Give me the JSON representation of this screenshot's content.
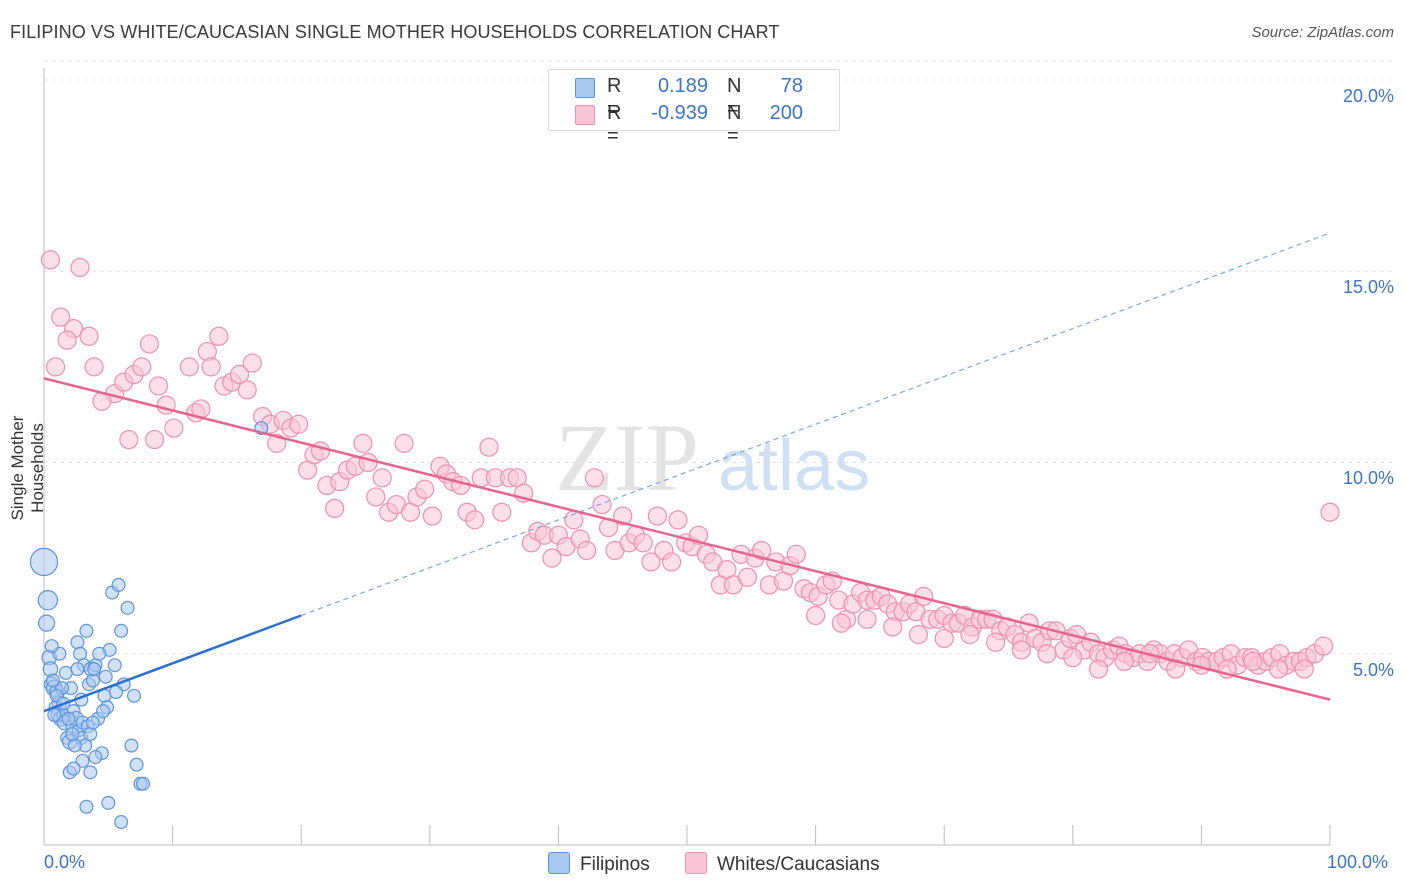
{
  "title": "FILIPINO VS WHITE/CAUCASIAN SINGLE MOTHER HOUSEHOLDS CORRELATION CHART",
  "source": "Source: ZipAtlas.com",
  "watermark": {
    "zip": "ZIP",
    "atlas": "atlas"
  },
  "legend": {
    "r_label": "R =",
    "n_label": "N =",
    "filipinos": {
      "r": "0.189",
      "n": "78",
      "color": "#a9c8f0"
    },
    "whites": {
      "r": "-0.939",
      "n": "200",
      "color": "#f6b7cc"
    }
  },
  "chart_data": {
    "type": "scatter",
    "xlabel": "",
    "ylabel": "Single Mother Households",
    "xlim": [
      0,
      100
    ],
    "ylim": [
      0,
      20
    ],
    "x_tick_labels": {
      "min": "0.0%",
      "max": "100.0%"
    },
    "y_tick_labels": [
      "5.0%",
      "10.0%",
      "15.0%",
      "20.0%"
    ],
    "y_ticks": [
      5,
      10,
      15,
      20
    ],
    "grid": true,
    "legend_position": "top-center",
    "series": [
      {
        "name": "Filipinos",
        "color": "#5b93d9",
        "fill": "#a9c8f0",
        "trend": {
          "x0": 0,
          "y0": 3.5,
          "x1": 20,
          "y1": 6.0,
          "dashed_to_x": 100,
          "dashed_to_y": 16.0,
          "line_color": "#2d6fce"
        },
        "points": [
          [
            0.0,
            7.4,
            1.7
          ],
          [
            0.3,
            6.4,
            1.2
          ],
          [
            0.2,
            5.8,
            1.0
          ],
          [
            0.4,
            4.9,
            0.9
          ],
          [
            0.5,
            4.6,
            0.9
          ],
          [
            0.6,
            4.2,
            0.9
          ],
          [
            0.8,
            4.1,
            1.0
          ],
          [
            1.0,
            4.0,
            0.9
          ],
          [
            1.2,
            3.7,
            0.9
          ],
          [
            0.9,
            3.6,
            0.8
          ],
          [
            1.1,
            3.4,
            0.9
          ],
          [
            1.3,
            3.3,
            0.9
          ],
          [
            1.5,
            3.4,
            0.8
          ],
          [
            1.6,
            3.2,
            0.9
          ],
          [
            1.8,
            2.8,
            0.8
          ],
          [
            2.0,
            2.7,
            0.9
          ],
          [
            2.2,
            3.1,
            0.8
          ],
          [
            2.3,
            3.5,
            0.8
          ],
          [
            2.5,
            3.3,
            0.9
          ],
          [
            2.7,
            3.0,
            0.8
          ],
          [
            2.9,
            2.8,
            0.8
          ],
          [
            3.0,
            3.2,
            0.8
          ],
          [
            3.2,
            2.6,
            0.8
          ],
          [
            3.4,
            3.1,
            0.8
          ],
          [
            3.6,
            2.9,
            0.8
          ],
          [
            1.7,
            4.5,
            0.8
          ],
          [
            2.1,
            4.1,
            0.8
          ],
          [
            2.6,
            5.3,
            0.8
          ],
          [
            2.8,
            5.0,
            0.8
          ],
          [
            3.1,
            4.7,
            0.8
          ],
          [
            3.3,
            5.6,
            0.8
          ],
          [
            3.5,
            4.2,
            0.8
          ],
          [
            3.7,
            4.6,
            0.9
          ],
          [
            3.8,
            4.3,
            0.8
          ],
          [
            4.0,
            4.7,
            0.8
          ],
          [
            4.2,
            3.3,
            0.8
          ],
          [
            4.5,
            2.4,
            0.8
          ],
          [
            4.7,
            3.9,
            0.8
          ],
          [
            4.9,
            3.6,
            0.8
          ],
          [
            5.1,
            5.1,
            0.8
          ],
          [
            5.3,
            6.6,
            0.8
          ],
          [
            5.5,
            4.7,
            0.8
          ],
          [
            5.8,
            6.8,
            0.8
          ],
          [
            6.0,
            5.6,
            0.8
          ],
          [
            6.2,
            4.2,
            0.8
          ],
          [
            6.5,
            6.2,
            0.8
          ],
          [
            6.8,
            2.6,
            0.8
          ],
          [
            7.0,
            3.9,
            0.8
          ],
          [
            7.2,
            2.1,
            0.8
          ],
          [
            7.5,
            1.6,
            0.8
          ],
          [
            2.0,
            1.9,
            0.8
          ],
          [
            3.3,
            1.0,
            0.8
          ],
          [
            5.0,
            1.1,
            0.8
          ],
          [
            7.7,
            1.6,
            0.8
          ],
          [
            6.0,
            0.6,
            0.8
          ],
          [
            3.6,
            1.9,
            0.8
          ],
          [
            4.0,
            2.3,
            0.8
          ],
          [
            2.4,
            2.6,
            0.8
          ],
          [
            1.9,
            3.3,
            0.8
          ],
          [
            1.4,
            4.1,
            0.8
          ],
          [
            0.8,
            3.4,
            0.8
          ],
          [
            2.6,
            4.6,
            0.8
          ],
          [
            3.9,
            4.6,
            0.8
          ],
          [
            4.3,
            5.0,
            0.8
          ],
          [
            1.2,
            5.0,
            0.8
          ],
          [
            0.6,
            5.2,
            0.8
          ],
          [
            1.0,
            3.9,
            0.8
          ],
          [
            2.2,
            2.9,
            0.8
          ],
          [
            3.0,
            2.2,
            0.8
          ],
          [
            4.6,
            3.5,
            0.8
          ],
          [
            5.6,
            4.0,
            0.8
          ],
          [
            0.7,
            4.3,
            0.8
          ],
          [
            1.5,
            3.7,
            0.8
          ],
          [
            2.9,
            3.8,
            0.8
          ],
          [
            16.9,
            10.9,
            0.8
          ],
          [
            3.8,
            3.2,
            0.8
          ],
          [
            4.8,
            4.4,
            0.8
          ],
          [
            2.3,
            2.0,
            0.8
          ]
        ]
      },
      {
        "name": "Whites/Caucasians",
        "color": "#ef8fb0",
        "fill": "#f9c5d6",
        "trend": {
          "x0": 0,
          "y0": 12.2,
          "x1": 100,
          "y1": 3.8,
          "line_color": "#e8648e"
        },
        "points": [
          [
            0.5,
            15.3
          ],
          [
            2.8,
            15.1
          ],
          [
            1.3,
            13.8
          ],
          [
            2.3,
            13.5
          ],
          [
            3.5,
            13.3
          ],
          [
            1.8,
            13.2
          ],
          [
            0.9,
            12.5
          ],
          [
            3.9,
            12.5
          ],
          [
            5.5,
            11.8
          ],
          [
            6.2,
            12.1
          ],
          [
            4.5,
            11.6
          ],
          [
            7.0,
            12.3
          ],
          [
            8.2,
            13.1
          ],
          [
            7.6,
            12.5
          ],
          [
            8.9,
            12.0
          ],
          [
            9.5,
            11.5
          ],
          [
            10.1,
            10.9
          ],
          [
            8.6,
            10.6
          ],
          [
            6.6,
            10.6
          ],
          [
            11.3,
            12.5
          ],
          [
            11.8,
            11.3
          ],
          [
            12.2,
            11.4
          ],
          [
            12.7,
            12.9
          ],
          [
            13.0,
            12.5
          ],
          [
            13.6,
            13.3
          ],
          [
            14.0,
            12.0
          ],
          [
            14.6,
            12.1
          ],
          [
            15.2,
            12.3
          ],
          [
            15.8,
            11.9
          ],
          [
            16.2,
            12.6
          ],
          [
            17.0,
            11.2
          ],
          [
            17.6,
            11.0
          ],
          [
            18.1,
            10.5
          ],
          [
            18.6,
            11.1
          ],
          [
            19.2,
            10.9
          ],
          [
            19.8,
            11.0
          ],
          [
            20.5,
            9.8
          ],
          [
            21.0,
            10.2
          ],
          [
            21.5,
            10.3
          ],
          [
            22.0,
            9.4
          ],
          [
            22.6,
            8.8
          ],
          [
            23.0,
            9.5
          ],
          [
            23.6,
            9.8
          ],
          [
            24.2,
            9.9
          ],
          [
            24.8,
            10.5
          ],
          [
            25.2,
            10.0
          ],
          [
            25.8,
            9.1
          ],
          [
            26.3,
            9.6
          ],
          [
            26.8,
            8.7
          ],
          [
            27.4,
            8.9
          ],
          [
            28.0,
            10.5
          ],
          [
            28.5,
            8.7
          ],
          [
            29.0,
            9.1
          ],
          [
            29.6,
            9.3
          ],
          [
            30.2,
            8.6
          ],
          [
            30.8,
            9.9
          ],
          [
            31.3,
            9.7
          ],
          [
            31.8,
            9.5
          ],
          [
            32.4,
            9.4
          ],
          [
            32.9,
            8.7
          ],
          [
            33.5,
            8.5
          ],
          [
            34.0,
            9.6
          ],
          [
            34.6,
            10.4
          ],
          [
            35.1,
            9.6
          ],
          [
            35.6,
            8.7
          ],
          [
            36.2,
            9.6
          ],
          [
            36.8,
            9.6
          ],
          [
            37.3,
            9.2
          ],
          [
            37.9,
            7.9
          ],
          [
            38.4,
            8.2
          ],
          [
            38.9,
            8.1
          ],
          [
            39.5,
            7.5
          ],
          [
            40.0,
            8.1
          ],
          [
            40.6,
            7.8
          ],
          [
            41.2,
            8.5
          ],
          [
            41.7,
            8.0
          ],
          [
            42.2,
            7.7
          ],
          [
            42.8,
            9.6
          ],
          [
            43.4,
            8.9
          ],
          [
            43.9,
            8.3
          ],
          [
            44.4,
            7.7
          ],
          [
            45.0,
            8.6
          ],
          [
            45.5,
            7.9
          ],
          [
            46.0,
            8.1
          ],
          [
            46.6,
            7.9
          ],
          [
            47.2,
            7.4
          ],
          [
            47.7,
            8.6
          ],
          [
            48.2,
            7.7
          ],
          [
            48.8,
            7.4
          ],
          [
            49.3,
            8.5
          ],
          [
            49.9,
            7.9
          ],
          [
            50.4,
            7.8
          ],
          [
            50.9,
            8.1
          ],
          [
            51.5,
            7.6
          ],
          [
            52.0,
            7.4
          ],
          [
            52.6,
            6.8
          ],
          [
            53.1,
            7.2
          ],
          [
            53.6,
            6.8
          ],
          [
            54.2,
            7.6
          ],
          [
            54.7,
            7.0
          ],
          [
            55.3,
            7.5
          ],
          [
            55.8,
            7.7
          ],
          [
            56.4,
            6.8
          ],
          [
            56.9,
            7.4
          ],
          [
            57.5,
            6.9
          ],
          [
            58.0,
            7.3
          ],
          [
            58.5,
            7.6
          ],
          [
            59.1,
            6.7
          ],
          [
            59.6,
            6.6
          ],
          [
            60.2,
            6.5
          ],
          [
            60.8,
            6.8
          ],
          [
            61.3,
            6.9
          ],
          [
            61.8,
            6.4
          ],
          [
            62.4,
            5.9
          ],
          [
            62.9,
            6.3
          ],
          [
            63.5,
            6.6
          ],
          [
            64.0,
            6.4
          ],
          [
            64.6,
            6.4
          ],
          [
            65.1,
            6.5
          ],
          [
            65.6,
            6.3
          ],
          [
            66.2,
            6.1
          ],
          [
            66.8,
            6.1
          ],
          [
            67.3,
            6.3
          ],
          [
            67.8,
            6.1
          ],
          [
            68.4,
            6.5
          ],
          [
            68.9,
            5.9
          ],
          [
            69.5,
            5.9
          ],
          [
            70.0,
            6.0
          ],
          [
            70.6,
            5.8
          ],
          [
            71.1,
            5.8
          ],
          [
            71.6,
            6.0
          ],
          [
            72.2,
            5.7
          ],
          [
            72.8,
            5.9
          ],
          [
            73.3,
            5.9
          ],
          [
            73.8,
            5.9
          ],
          [
            74.4,
            5.6
          ],
          [
            74.9,
            5.7
          ],
          [
            75.5,
            5.5
          ],
          [
            76.0,
            5.3
          ],
          [
            76.6,
            5.8
          ],
          [
            77.1,
            5.4
          ],
          [
            77.6,
            5.3
          ],
          [
            78.2,
            5.6
          ],
          [
            78.7,
            5.6
          ],
          [
            79.3,
            5.1
          ],
          [
            79.8,
            5.4
          ],
          [
            80.3,
            5.5
          ],
          [
            80.9,
            5.1
          ],
          [
            81.4,
            5.3
          ],
          [
            82.0,
            5.0
          ],
          [
            82.5,
            4.9
          ],
          [
            83.1,
            5.1
          ],
          [
            83.6,
            5.2
          ],
          [
            84.1,
            5.0
          ],
          [
            84.7,
            4.9
          ],
          [
            85.2,
            5.0
          ],
          [
            85.8,
            4.8
          ],
          [
            86.3,
            5.1
          ],
          [
            86.8,
            5.0
          ],
          [
            87.4,
            4.8
          ],
          [
            87.9,
            5.0
          ],
          [
            88.5,
            4.9
          ],
          [
            89.0,
            5.1
          ],
          [
            89.6,
            4.8
          ],
          [
            90.1,
            4.9
          ],
          [
            90.6,
            4.8
          ],
          [
            91.2,
            4.8
          ],
          [
            91.7,
            4.9
          ],
          [
            92.3,
            5.0
          ],
          [
            92.8,
            4.7
          ],
          [
            93.4,
            4.9
          ],
          [
            93.9,
            4.9
          ],
          [
            94.4,
            4.7
          ],
          [
            95.0,
            4.8
          ],
          [
            95.5,
            4.9
          ],
          [
            96.1,
            5.0
          ],
          [
            96.6,
            4.7
          ],
          [
            97.2,
            4.8
          ],
          [
            97.7,
            4.8
          ],
          [
            98.2,
            4.9
          ],
          [
            98.8,
            5.0
          ],
          [
            99.5,
            5.2
          ],
          [
            100.0,
            8.7
          ],
          [
            86.0,
            5.0
          ],
          [
            88.0,
            4.6
          ],
          [
            90.0,
            4.7
          ],
          [
            92.0,
            4.6
          ],
          [
            94.0,
            4.8
          ],
          [
            96.0,
            4.6
          ],
          [
            98.0,
            4.6
          ],
          [
            84.0,
            4.8
          ],
          [
            82.0,
            4.6
          ],
          [
            80.0,
            4.9
          ],
          [
            78.0,
            5.0
          ],
          [
            76.0,
            5.1
          ],
          [
            74.0,
            5.3
          ],
          [
            72.0,
            5.5
          ],
          [
            70.0,
            5.4
          ],
          [
            68.0,
            5.5
          ],
          [
            66.0,
            5.7
          ],
          [
            64.0,
            5.9
          ],
          [
            62.0,
            5.8
          ],
          [
            60.0,
            6.0
          ]
        ]
      }
    ]
  }
}
